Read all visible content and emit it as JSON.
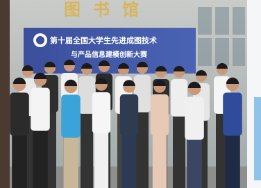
{
  "building_sign": {
    "text": "图书馆"
  },
  "banner": {
    "line1": "第十届全国大学生先进成图技术",
    "line2": "与产品信息建模创新大赛"
  }
}
